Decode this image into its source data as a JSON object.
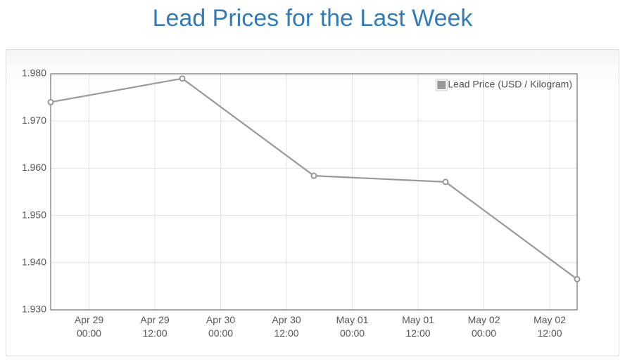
{
  "chart_data": {
    "type": "line",
    "title": "Lead Prices for the Last Week",
    "x": [
      "Apr 28 17:00",
      "Apr 29 17:00",
      "Apr 30 17:00",
      "May 01 17:00",
      "May 02 17:00"
    ],
    "series": [
      {
        "name": "Lead Price (USD / Kilogram)",
        "color": "#999999",
        "values": [
          1.974,
          1.979,
          1.9584,
          1.9571,
          1.9365
        ]
      }
    ],
    "xlim": [
      "Apr 28 17:00",
      "May 02 17:00"
    ],
    "xticks": [
      {
        "value": "Apr 29 00:00",
        "label": [
          "Apr 29",
          "00:00"
        ]
      },
      {
        "value": "Apr 29 12:00",
        "label": [
          "Apr 29",
          "12:00"
        ]
      },
      {
        "value": "Apr 30 00:00",
        "label": [
          "Apr 30",
          "00:00"
        ]
      },
      {
        "value": "Apr 30 12:00",
        "label": [
          "Apr 30",
          "12:00"
        ]
      },
      {
        "value": "May 01 00:00",
        "label": [
          "May 01",
          "00:00"
        ]
      },
      {
        "value": "May 01 12:00",
        "label": [
          "May 01",
          "12:00"
        ]
      },
      {
        "value": "May 02 00:00",
        "label": [
          "May 02",
          "00:00"
        ]
      },
      {
        "value": "May 02 12:00",
        "label": [
          "May 02",
          "12:00"
        ]
      }
    ],
    "ylim": [
      1.93,
      1.98
    ],
    "yticks": [
      {
        "value": 1.93,
        "label": "1.930"
      },
      {
        "value": 1.94,
        "label": "1.940"
      },
      {
        "value": 1.95,
        "label": "1.950"
      },
      {
        "value": 1.96,
        "label": "1.960"
      },
      {
        "value": 1.97,
        "label": "1.970"
      },
      {
        "value": 1.98,
        "label": "1.980"
      }
    ],
    "grid": true,
    "legend_position": "ne"
  }
}
